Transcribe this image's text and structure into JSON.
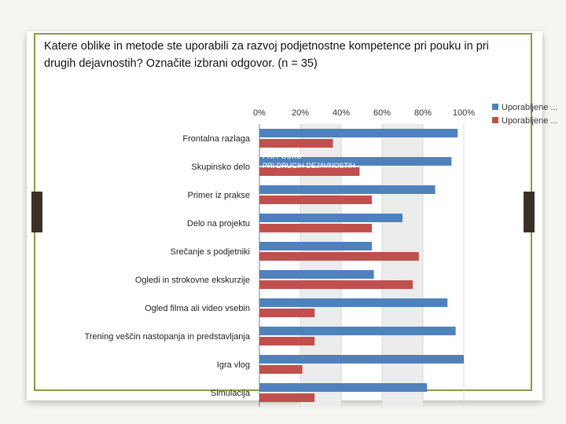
{
  "slide": {
    "title": "Katere oblike in metode ste uporabili za razvoj podjetnostne kompetence pri pouku in pri drugih dejavnostih? Označite izbrani odgovor. (n = 35)"
  },
  "chart_data": {
    "type": "bar",
    "orientation": "horizontal",
    "categories": [
      "Frontalna razlaga",
      "Skupinsko delo",
      "Primer iz prakse",
      "Delo na projektu",
      "Srečanje s podjetniki",
      "Ogledi in strokovne ekskurzije",
      "Ogled filma ali video vsebin",
      "Trening veščin nastopanja in predstavljanja",
      "Igra vlog",
      "Simulacija"
    ],
    "series": [
      {
        "name": "Uporabljene ...",
        "color": "#4f81bd",
        "values": [
          97,
          94,
          86,
          70,
          55,
          56,
          92,
          96,
          100,
          82
        ]
      },
      {
        "name": "Uporabljene ...",
        "color": "#c0504d",
        "values": [
          36,
          49,
          55,
          55,
          78,
          75,
          27,
          27,
          21,
          27
        ]
      }
    ],
    "xlim": [
      0,
      100
    ],
    "xticks": [
      "0%",
      "20%",
      "40%",
      "60%",
      "80%",
      "100%"
    ],
    "legend_position": "right",
    "annotations": [
      "PRI POUKU",
      "PRI DRUGIH DEJAVNOSTIH"
    ]
  },
  "colors": {
    "frame": "#8b9a43",
    "blue": "#4f81bd",
    "red": "#c0504d",
    "tab": "#3b2f28"
  }
}
